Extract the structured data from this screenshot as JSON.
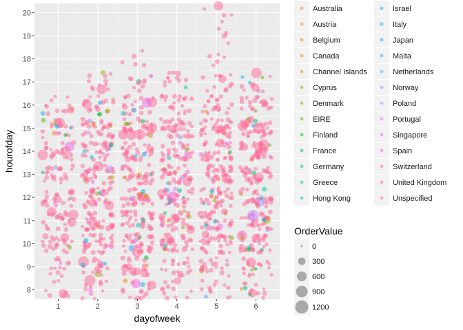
{
  "chart_data": {
    "type": "scatter",
    "jitter": true,
    "xlabel": "dayofweek",
    "ylabel": "hourofday",
    "xlim": [
      0.4,
      6.6
    ],
    "ylim": [
      7.6,
      20.4
    ],
    "x_ticks": [
      1,
      2,
      3,
      4,
      5,
      6
    ],
    "y_ticks": [
      8,
      9,
      10,
      11,
      12,
      13,
      14,
      15,
      16,
      17,
      18,
      19,
      20
    ],
    "grid": true,
    "panel_background": "#ebebeb",
    "grid_color": "#ffffff",
    "point_alpha": 0.5,
    "color_legend": [
      {
        "label": "Australia",
        "color": "#F8766D"
      },
      {
        "label": "Austria",
        "color": "#EF7F48"
      },
      {
        "label": "Belgium",
        "color": "#E38900"
      },
      {
        "label": "Canada",
        "color": "#D39200"
      },
      {
        "label": "Channel Islands",
        "color": "#C09B00"
      },
      {
        "label": "Cyprus",
        "color": "#A9A400"
      },
      {
        "label": "Denmark",
        "color": "#8CAB00"
      },
      {
        "label": "EIRE",
        "color": "#64B200"
      },
      {
        "label": "Finland",
        "color": "#00B81F"
      },
      {
        "label": "France",
        "color": "#00BC59"
      },
      {
        "label": "Germany",
        "color": "#00C087"
      },
      {
        "label": "Greece",
        "color": "#00C1A7"
      },
      {
        "label": "Hong Kong",
        "color": "#00BEC4"
      },
      {
        "label": "Israel",
        "color": "#00BAD8"
      },
      {
        "label": "Italy",
        "color": "#00B4EF"
      },
      {
        "label": "Japan",
        "color": "#00A9FF"
      },
      {
        "label": "Malta",
        "color": "#35A2FF"
      },
      {
        "label": "Netherlands",
        "color": "#619CFF"
      },
      {
        "label": "Norway",
        "color": "#9590FF"
      },
      {
        "label": "Poland",
        "color": "#B983FF"
      },
      {
        "label": "Portugal",
        "color": "#DB72FB"
      },
      {
        "label": "Singapore",
        "color": "#EE67E8"
      },
      {
        "label": "Spain",
        "color": "#F863DF"
      },
      {
        "label": "Switzerland",
        "color": "#FF62BC"
      },
      {
        "label": "United Kingdom",
        "color": "#FF6A98"
      },
      {
        "label": "Unspecified",
        "color": "#FF6C91"
      }
    ],
    "size_legend": {
      "title": "OrderValue",
      "values": [
        0,
        300,
        600,
        900,
        1200
      ],
      "color": "#000000",
      "alpha": 0.3
    }
  }
}
